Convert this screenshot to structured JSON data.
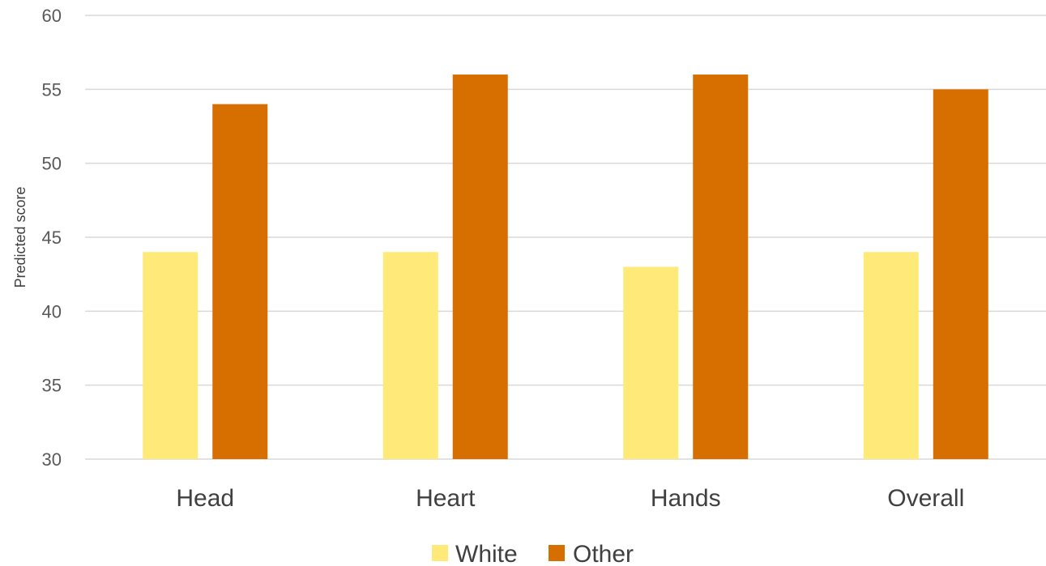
{
  "chart_data": {
    "type": "bar",
    "title": "",
    "xlabel": "",
    "ylabel": "Predicted score",
    "ylim": [
      30,
      60
    ],
    "yticks": [
      30,
      35,
      40,
      45,
      50,
      55,
      60
    ],
    "grid": true,
    "legend_position": "bottom",
    "categories": [
      "Head",
      "Heart",
      "Hands",
      "Overall"
    ],
    "series": [
      {
        "name": "White",
        "color": "#FFE979",
        "values": [
          44,
          44,
          43,
          44
        ]
      },
      {
        "name": "Other",
        "color": "#D76F00",
        "values": [
          54,
          56,
          56,
          55
        ]
      }
    ]
  }
}
